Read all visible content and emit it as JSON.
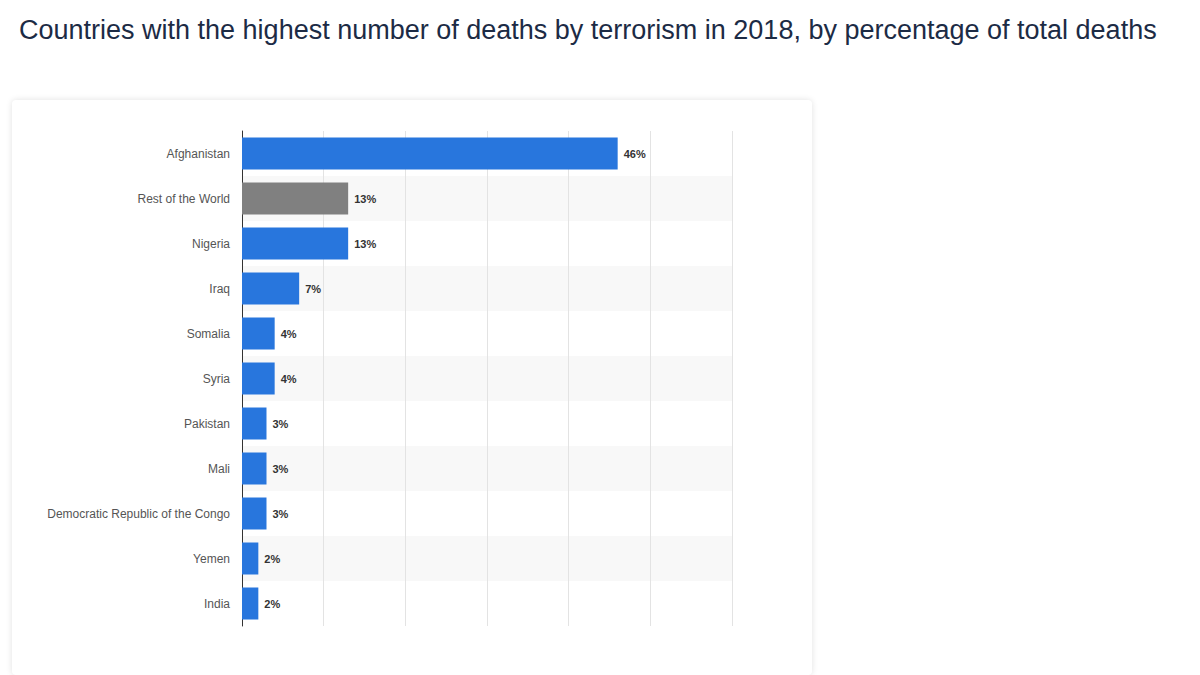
{
  "chart_data": {
    "type": "bar",
    "title": "Countries with the highest number of deaths by terrorism in 2018, by percentage of total deaths",
    "orientation": "horizontal",
    "categories": [
      "Afghanistan",
      "Rest of the World",
      "Nigeria",
      "Iraq",
      "Somalia",
      "Syria",
      "Pakistan",
      "Mali",
      "Democratic Republic of the Congo",
      "Yemen",
      "India"
    ],
    "values": [
      46,
      13,
      13,
      7,
      4,
      4,
      3,
      3,
      3,
      2,
      2
    ],
    "value_labels": [
      "46%",
      "13%",
      "13%",
      "7%",
      "4%",
      "4%",
      "3%",
      "3%",
      "3%",
      "2%",
      "2%"
    ],
    "colors": [
      "#2876dd",
      "#808080",
      "#2876dd",
      "#2876dd",
      "#2876dd",
      "#2876dd",
      "#2876dd",
      "#2876dd",
      "#2876dd",
      "#2876dd",
      "#2876dd"
    ],
    "xlim": [
      0,
      60
    ],
    "xticks": [
      0,
      10,
      20,
      30,
      40,
      50,
      60
    ],
    "grid": true,
    "data_labels": true,
    "tick_labels": "y"
  }
}
